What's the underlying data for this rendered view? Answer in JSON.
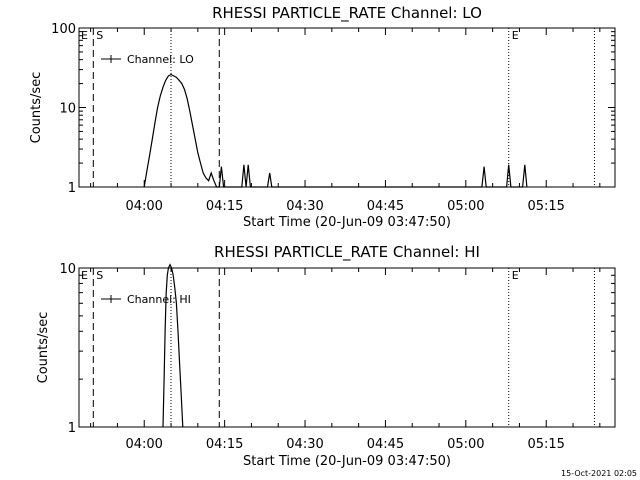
{
  "footer_stamp": "15-Oct-2021 02:05",
  "chart_data": [
    {
      "type": "line",
      "title": "RHESSI PARTICLE_RATE Channel: LO",
      "xlabel": "Start Time (20-Jun-09 03:47:50)",
      "ylabel": "Counts/sec",
      "y_scale": "log",
      "ylim": [
        1,
        100
      ],
      "y_ticks": [
        {
          "value": 1,
          "label": "1"
        },
        {
          "value": 10,
          "label": "10"
        },
        {
          "value": 100,
          "label": "100"
        }
      ],
      "xlim_minutes": [
        -12.17,
        87.83
      ],
      "x_ticks": [
        {
          "minute": 0,
          "label": "04:00"
        },
        {
          "minute": 15,
          "label": "04:15"
        },
        {
          "minute": 30,
          "label": "04:30"
        },
        {
          "minute": 45,
          "label": "04:45"
        },
        {
          "minute": 60,
          "label": "05:00"
        },
        {
          "minute": 75,
          "label": "05:15"
        }
      ],
      "legend": {
        "label": "Channel: LO",
        "position": "top-left"
      },
      "markers": [
        {
          "minute": -9.5,
          "style": "dashed",
          "label": "S"
        },
        {
          "minute": 5,
          "style": "dotted",
          "label": ""
        },
        {
          "minute": 14,
          "style": "dashed",
          "label": ""
        },
        {
          "minute": 68,
          "style": "dotted",
          "label": "E"
        },
        {
          "minute": 84,
          "style": "dotted",
          "label": ""
        }
      ],
      "left_label": "E",
      "series": [
        {
          "points": [
            [
              0,
              1
            ],
            [
              0.5,
              1.6
            ],
            [
              1,
              2.5
            ],
            [
              1.5,
              4
            ],
            [
              2,
              6.5
            ],
            [
              2.5,
              10
            ],
            [
              3,
              14
            ],
            [
              3.5,
              18
            ],
            [
              4,
              22
            ],
            [
              4.5,
              25
            ],
            [
              5,
              26
            ],
            [
              5.5,
              25
            ],
            [
              6,
              24
            ],
            [
              6.5,
              22
            ],
            [
              7,
              20
            ],
            [
              7.5,
              17
            ],
            [
              8,
              13
            ],
            [
              8.5,
              9
            ],
            [
              9,
              6
            ],
            [
              9.5,
              4
            ],
            [
              10,
              2.7
            ],
            [
              10.5,
              2
            ],
            [
              11,
              1.5
            ],
            [
              11.5,
              1.3
            ],
            [
              12,
              1.2
            ],
            [
              12.5,
              1.5
            ],
            [
              13,
              1.2
            ],
            [
              13.5,
              1
            ],
            [
              14,
              1
            ],
            [
              14.4,
              1.8
            ],
            [
              14.8,
              1
            ],
            [
              18.2,
              1
            ],
            [
              18.6,
              1.9
            ],
            [
              19.0,
              1
            ],
            [
              19.4,
              1.9
            ],
            [
              19.8,
              1
            ],
            [
              23,
              1
            ],
            [
              23.4,
              1.5
            ],
            [
              23.8,
              1
            ],
            [
              63,
              1
            ],
            [
              63.4,
              1.8
            ],
            [
              63.8,
              1
            ],
            [
              67.6,
              1
            ],
            [
              68,
              1.9
            ],
            [
              68.4,
              1
            ],
            [
              70.6,
              1
            ],
            [
              71,
              1.9
            ],
            [
              71.4,
              1
            ]
          ]
        }
      ]
    },
    {
      "type": "line",
      "title": "RHESSI PARTICLE_RATE Channel: HI",
      "xlabel": "Start Time (20-Jun-09 03:47:50)",
      "ylabel": "Counts/sec",
      "y_scale": "log",
      "ylim": [
        1,
        10
      ],
      "y_ticks": [
        {
          "value": 1,
          "label": "1"
        },
        {
          "value": 10,
          "label": "10"
        }
      ],
      "xlim_minutes": [
        -12.17,
        87.83
      ],
      "x_ticks": [
        {
          "minute": 0,
          "label": "04:00"
        },
        {
          "minute": 15,
          "label": "04:15"
        },
        {
          "minute": 30,
          "label": "04:30"
        },
        {
          "minute": 45,
          "label": "04:45"
        },
        {
          "minute": 60,
          "label": "05:00"
        },
        {
          "minute": 75,
          "label": "05:15"
        }
      ],
      "legend": {
        "label": "Channel: HI",
        "position": "top-left"
      },
      "markers": [
        {
          "minute": -9.5,
          "style": "dashed",
          "label": "S"
        },
        {
          "minute": 5,
          "style": "dotted",
          "label": ""
        },
        {
          "minute": 14,
          "style": "dashed",
          "label": ""
        },
        {
          "minute": 68,
          "style": "dotted",
          "label": "E"
        },
        {
          "minute": 84,
          "style": "dotted",
          "label": ""
        }
      ],
      "left_label": "E",
      "series": [
        {
          "points": [
            [
              3.5,
              1
            ],
            [
              3.7,
              2
            ],
            [
              3.9,
              4
            ],
            [
              4.1,
              7
            ],
            [
              4.3,
              9
            ],
            [
              4.5,
              10
            ],
            [
              4.8,
              10.5
            ],
            [
              5.1,
              10
            ],
            [
              5.4,
              9
            ],
            [
              5.7,
              7.5
            ],
            [
              6.0,
              6
            ],
            [
              6.3,
              4
            ],
            [
              6.6,
              2.5
            ],
            [
              6.9,
              1.6
            ],
            [
              7.2,
              1
            ]
          ]
        }
      ]
    }
  ]
}
